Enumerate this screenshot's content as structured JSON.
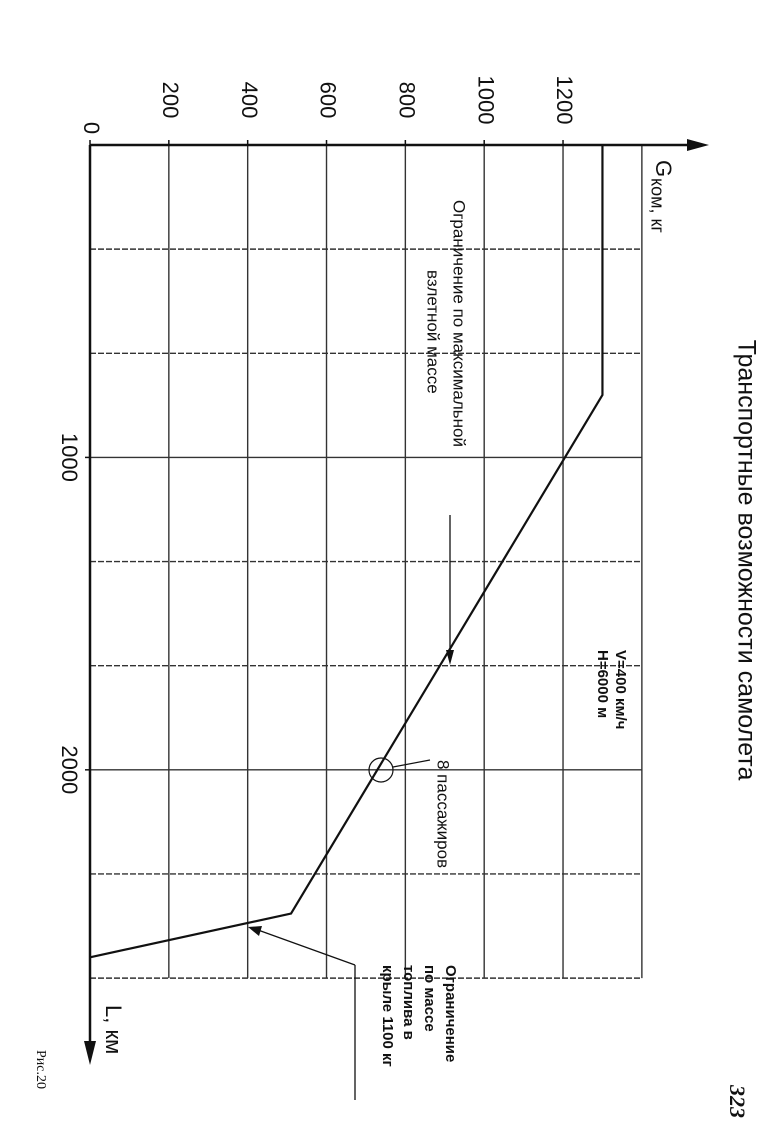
{
  "chart_data": {
    "type": "line",
    "title": "Транспортные возможности самолета",
    "y_label": "G",
    "y_label_sub": "ком, кг",
    "x_label": "L, км",
    "x": [
      0,
      800,
      2460,
      2600
    ],
    "series": [
      {
        "color": "#111111",
        "values": [
          1300,
          1300,
          510,
          0
        ]
      }
    ],
    "xlim": [
      0,
      2900
    ],
    "ylim": [
      0,
      1550
    ],
    "xticks": [
      1000,
      2000
    ],
    "yticks": [
      0,
      200,
      400,
      600,
      800,
      1000,
      1200
    ],
    "xgrid": [
      333.3,
      666.7,
      1000,
      1333.3,
      1666.7,
      2000,
      2333.3,
      2666.7
    ],
    "ygrid": [
      200,
      400,
      600,
      800,
      1000,
      1200,
      1400
    ],
    "grid": true,
    "annotations": {
      "conditions": [
        "V=400 км/ч",
        "H=6000 м"
      ],
      "takeoff_limit": [
        "Ограничение по максимальной",
        "взлетной массе"
      ],
      "passengers": "8 пассажиров",
      "fuel_limit": [
        "Ограничение",
        "по массе",
        "топлива в",
        "крыле 1100 кг"
      ],
      "figure": "Рис.20",
      "page_number": "323"
    }
  }
}
